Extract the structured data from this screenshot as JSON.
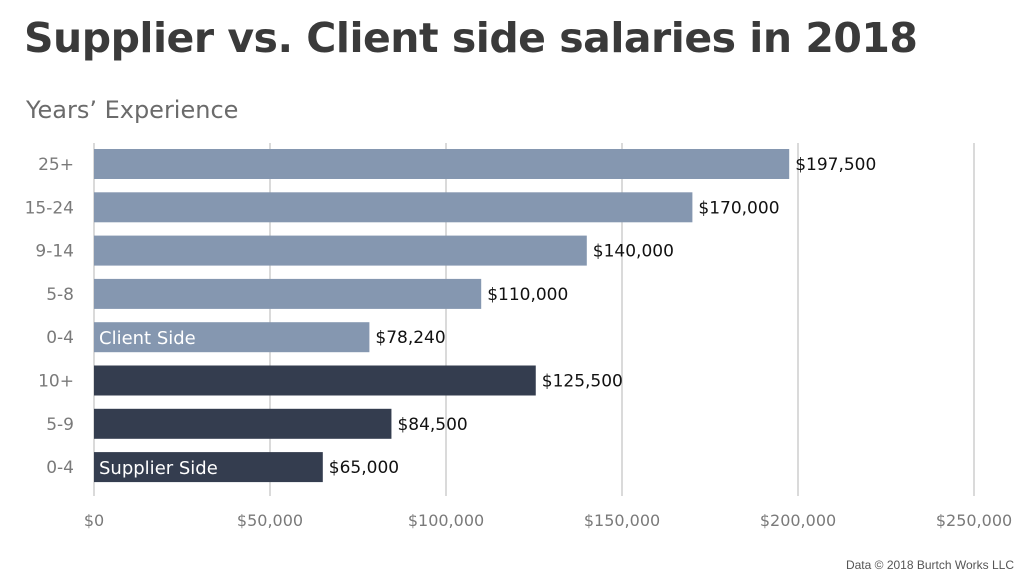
{
  "title": "Supplier vs. Client side salaries in 2018",
  "credit": "Data © 2018 Burtch Works LLC",
  "chart_data": {
    "type": "bar",
    "orientation": "horizontal",
    "title": "Supplier vs. Client side salaries in 2018",
    "ylabel": "Years’ Experience",
    "xlabel": "",
    "xlim": [
      0,
      250000
    ],
    "xticks": [
      0,
      50000,
      100000,
      150000,
      200000,
      250000
    ],
    "xtick_labels": [
      "$0",
      "$50,000",
      "$100,000",
      "$150,000",
      "$200,000",
      "$250,000"
    ],
    "grid": "vertical",
    "categories": [
      "25+",
      "15-24",
      "9-14",
      "5-8",
      "0-4",
      "10+",
      "5-9",
      "0-4"
    ],
    "values": [
      197500,
      170000,
      140000,
      110000,
      78240,
      125500,
      84500,
      65000
    ],
    "value_labels": [
      "$197,500",
      "$170,000",
      "$140,000",
      "$110,000",
      "$78,240",
      "$125,500",
      "$84,500",
      "$65,000"
    ],
    "groups": [
      "client",
      "client",
      "client",
      "client",
      "client",
      "supplier",
      "supplier",
      "supplier"
    ],
    "group_labels": {
      "client": "Client Side",
      "supplier": "Supplier Side"
    },
    "colors": {
      "client": "#8597b0",
      "supplier": "#343d4f",
      "grid": "#b5b5b5",
      "tick": "#7a7a7a",
      "label": "#111111",
      "inlabel": "#ffffff"
    }
  }
}
